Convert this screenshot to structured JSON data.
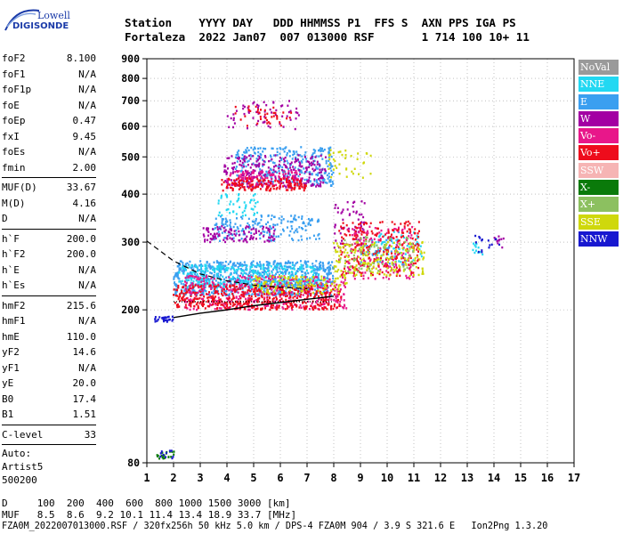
{
  "logo": {
    "line1": "Lowell",
    "line2": "DIGISONDE"
  },
  "header": {
    "line1": "Station    YYYY DAY   DDD HHMMSS P1  FFS S  AXN PPS IGA PS",
    "line2": "Fortaleza  2022 Jan07  007 013000 RSF       1 714 100 10+ 11"
  },
  "params": [
    {
      "label": "foF2",
      "value": "8.100"
    },
    {
      "label": "foF1",
      "value": "N/A"
    },
    {
      "label": "foF1p",
      "value": "N/A"
    },
    {
      "label": "foE",
      "value": "N/A"
    },
    {
      "label": "foEp",
      "value": "0.47"
    },
    {
      "label": "fxI",
      "value": "9.45"
    },
    {
      "label": "foEs",
      "value": "N/A"
    },
    {
      "label": "fmin",
      "value": "2.00"
    },
    {
      "sep": true
    },
    {
      "label": "MUF(D)",
      "value": "33.67"
    },
    {
      "label": "M(D)",
      "value": "4.16"
    },
    {
      "label": "D",
      "value": "N/A"
    },
    {
      "sep": true
    },
    {
      "label": "h`F",
      "value": "200.0"
    },
    {
      "label": "h`F2",
      "value": "200.0"
    },
    {
      "label": "h`E",
      "value": "N/A"
    },
    {
      "label": "h`Es",
      "value": "N/A"
    },
    {
      "sep": true
    },
    {
      "label": "hmF2",
      "value": "215.6"
    },
    {
      "label": "hmF1",
      "value": "N/A"
    },
    {
      "label": "hmE",
      "value": "110.0"
    },
    {
      "label": "yF2",
      "value": "14.6"
    },
    {
      "label": "yF1",
      "value": "N/A"
    },
    {
      "label": "yE",
      "value": "20.0"
    },
    {
      "label": "B0",
      "value": "17.4"
    },
    {
      "label": "B1",
      "value": "1.51"
    },
    {
      "sep": true
    },
    {
      "label": "C-level",
      "value": "33"
    },
    {
      "sep": true
    },
    {
      "text": "Auto:"
    },
    {
      "text": "Artist5"
    },
    {
      "text": "500200"
    }
  ],
  "legend": [
    {
      "label": "NoVal",
      "color": "#9a9a9a"
    },
    {
      "label": "NNE",
      "color": "#22d8f2"
    },
    {
      "label": "E",
      "color": "#3a9ff0"
    },
    {
      "label": "W",
      "color": "#a300a3"
    },
    {
      "label": "Vo-",
      "color": "#e8178a"
    },
    {
      "label": "Vo+",
      "color": "#ee0c1c"
    },
    {
      "label": "SSW",
      "color": "#f6b4b4"
    },
    {
      "label": "X-",
      "color": "#0a7a0a"
    },
    {
      "label": "X+",
      "color": "#8cc060"
    },
    {
      "label": "SSE",
      "color": "#cfd80c"
    },
    {
      "label": "NNW",
      "color": "#1818d0"
    }
  ],
  "footer": {
    "line1": "D     100  200  400  600  800 1000 1500 3000 [km]",
    "line2": "MUF   8.5  8.6  9.2 10.1 11.4 13.4 18.9 33.7 [MHz]",
    "line3": "FZA0M_2022007013000.RSF / 320fx256h 50 kHz 5.0 km / DPS-4 FZA0M 904 / 3.9 S 321.6 E   Ion2Png 1.3.20"
  },
  "chart_data": {
    "type": "scatter",
    "xlim": [
      1,
      17
    ],
    "ylim": [
      80,
      900
    ],
    "x_ticks": [
      1,
      2,
      3,
      4,
      5,
      6,
      7,
      8,
      9,
      10,
      11,
      12,
      13,
      14,
      15,
      16,
      17
    ],
    "y_ticks": [
      80,
      200,
      300,
      400,
      500,
      600,
      700,
      800,
      900
    ],
    "y_scale": "log",
    "grid": "dotted",
    "legend_position": "right",
    "series": [
      {
        "name": "E",
        "color": "#3a9ff0",
        "clusters": [
          {
            "x0": 2.0,
            "x1": 8.0,
            "y0": 218,
            "y1": 268,
            "n": 900
          },
          {
            "x0": 3.5,
            "x1": 7.5,
            "y0": 302,
            "y1": 352,
            "n": 180
          },
          {
            "x0": 4.3,
            "x1": 8.0,
            "y0": 420,
            "y1": 530,
            "n": 300
          },
          {
            "x0": 9.0,
            "x1": 10.7,
            "y0": 262,
            "y1": 305,
            "n": 60
          }
        ]
      },
      {
        "name": "NNE",
        "color": "#22d8f2",
        "clusters": [
          {
            "x0": 2.2,
            "x1": 7.5,
            "y0": 228,
            "y1": 262,
            "n": 300
          },
          {
            "x0": 3.6,
            "x1": 5.2,
            "y0": 350,
            "y1": 400,
            "n": 50
          },
          {
            "x0": 9.5,
            "x1": 11.3,
            "y0": 265,
            "y1": 320,
            "n": 60
          },
          {
            "x0": 13.2,
            "x1": 13.6,
            "y0": 278,
            "y1": 298,
            "n": 12
          }
        ]
      },
      {
        "name": "W",
        "color": "#a300a3",
        "clusters": [
          {
            "x0": 3.1,
            "x1": 5.8,
            "y0": 300,
            "y1": 330,
            "n": 110
          },
          {
            "x0": 3.9,
            "x1": 7.7,
            "y0": 415,
            "y1": 505,
            "n": 260
          },
          {
            "x0": 4.0,
            "x1": 6.7,
            "y0": 590,
            "y1": 700,
            "n": 60
          },
          {
            "x0": 8.0,
            "x1": 9.2,
            "y0": 290,
            "y1": 390,
            "n": 60
          },
          {
            "x0": 14.0,
            "x1": 14.4,
            "y0": 290,
            "y1": 312,
            "n": 10
          }
        ]
      },
      {
        "name": "Vo-",
        "color": "#e8178a",
        "clusters": [
          {
            "x0": 2.4,
            "x1": 8.5,
            "y0": 200,
            "y1": 245,
            "n": 420
          },
          {
            "x0": 4.0,
            "x1": 6.8,
            "y0": 420,
            "y1": 460,
            "n": 120
          },
          {
            "x0": 8.5,
            "x1": 11.0,
            "y0": 240,
            "y1": 330,
            "n": 160
          }
        ]
      },
      {
        "name": "Vo+",
        "color": "#ee0c1c",
        "clusters": [
          {
            "x0": 2.0,
            "x1": 8.3,
            "y0": 200,
            "y1": 232,
            "n": 460
          },
          {
            "x0": 3.8,
            "x1": 7.0,
            "y0": 408,
            "y1": 440,
            "n": 150
          },
          {
            "x0": 4.3,
            "x1": 6.5,
            "y0": 600,
            "y1": 680,
            "n": 40
          },
          {
            "x0": 8.2,
            "x1": 11.2,
            "y0": 245,
            "y1": 340,
            "n": 220
          }
        ]
      },
      {
        "name": "SSE",
        "color": "#cfd80c",
        "clusters": [
          {
            "x0": 5.0,
            "x1": 8.5,
            "y0": 220,
            "y1": 245,
            "n": 120
          },
          {
            "x0": 8.0,
            "x1": 11.4,
            "y0": 245,
            "y1": 300,
            "n": 180
          },
          {
            "x0": 7.8,
            "x1": 9.4,
            "y0": 440,
            "y1": 530,
            "n": 40
          }
        ]
      },
      {
        "name": "X+",
        "color": "#8cc060",
        "clusters": [
          {
            "x0": 8.0,
            "x1": 11.0,
            "y0": 250,
            "y1": 310,
            "n": 60
          }
        ]
      },
      {
        "name": "X-",
        "color": "#0a7a0a",
        "clusters": [
          {
            "x0": 1.3,
            "x1": 2.1,
            "y0": 82,
            "y1": 86,
            "n": 20
          }
        ]
      },
      {
        "name": "NNW",
        "color": "#1818d0",
        "clusters": [
          {
            "x0": 1.3,
            "x1": 2.0,
            "y0": 186,
            "y1": 192,
            "n": 30
          },
          {
            "x0": 1.5,
            "x1": 2.0,
            "y0": 82,
            "y1": 86,
            "n": 10
          },
          {
            "x0": 13.3,
            "x1": 14.3,
            "y0": 282,
            "y1": 312,
            "n": 16
          }
        ]
      }
    ],
    "trace_solid": {
      "x": [
        2.0,
        3.0,
        4.0,
        5.0,
        6.0,
        7.0,
        8.0
      ],
      "y": [
        191,
        196,
        200,
        205,
        209,
        213,
        217
      ]
    },
    "trace_dashed": {
      "x": [
        1.0,
        2.0,
        3.0,
        4.0,
        5.0,
        6.0,
        7.0
      ],
      "y": [
        302,
        268,
        248,
        238,
        232,
        229,
        227
      ]
    },
    "trace_dotted": {
      "x": [
        2.0,
        8.0
      ],
      "y": [
        210,
        210
      ]
    }
  }
}
